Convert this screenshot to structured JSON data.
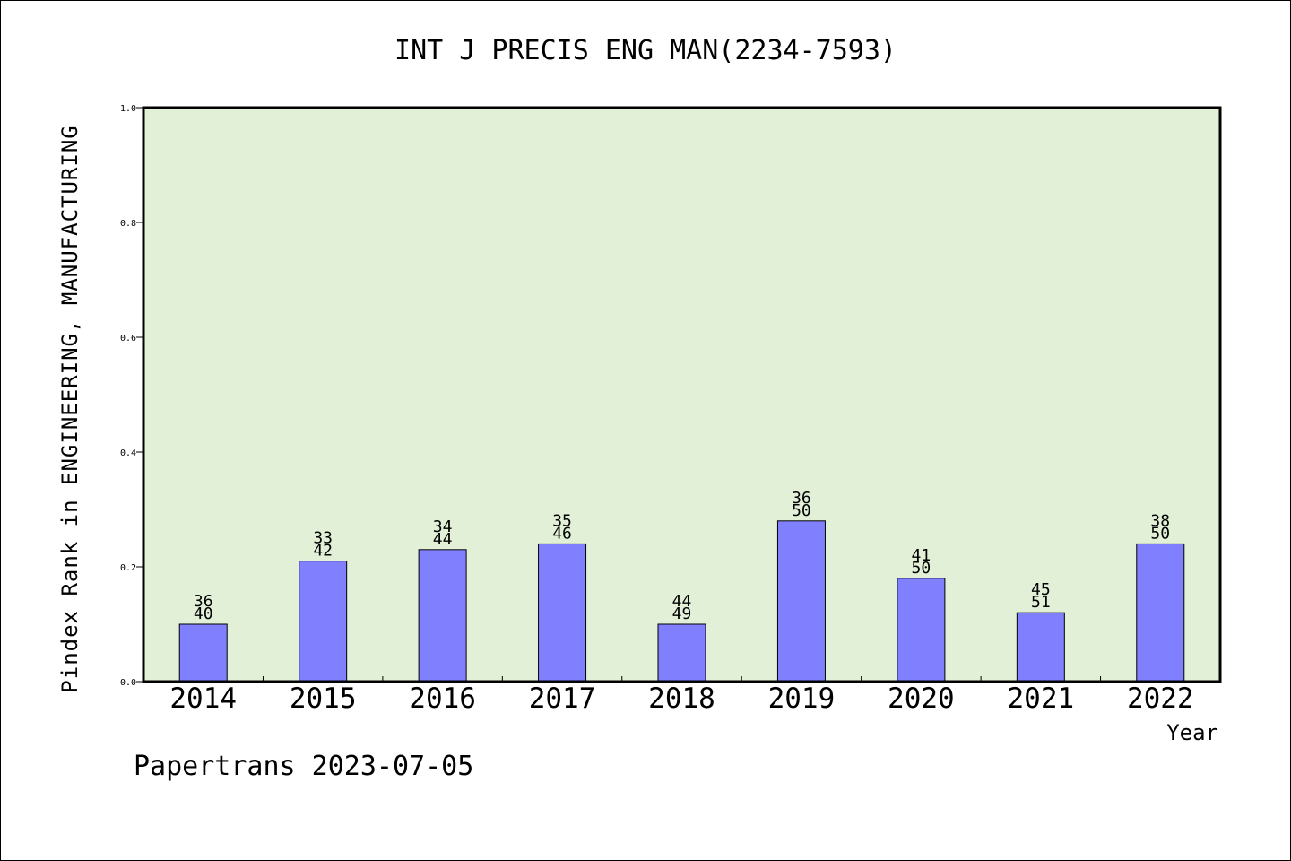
{
  "chart_data": {
    "type": "bar",
    "title": "INT J PRECIS ENG MAN(2234-7593)",
    "xlabel": "Year",
    "ylabel": "Pindex Rank in ENGINEERING, MANUFACTURING",
    "categories": [
      "2014",
      "2015",
      "2016",
      "2017",
      "2018",
      "2019",
      "2020",
      "2021",
      "2022"
    ],
    "values": [
      0.1,
      0.21,
      0.23,
      0.24,
      0.1,
      0.28,
      0.18,
      0.12,
      0.24
    ],
    "rank_labels": [
      "36",
      "33",
      "34",
      "35",
      "44",
      "36",
      "41",
      "45",
      "38"
    ],
    "total_labels": [
      "40",
      "42",
      "44",
      "46",
      "49",
      "50",
      "50",
      "51",
      "50"
    ],
    "ylim": [
      0,
      1.0
    ],
    "yticks": [
      "0.0",
      "0.2",
      "0.4",
      "0.6",
      "0.8",
      "1.0"
    ],
    "grid": false,
    "colors": {
      "bar": "#8080ff",
      "plot_bg": "#e2f0d8",
      "axis": "#000000"
    }
  },
  "footer": "Papertrans 2023-07-05"
}
